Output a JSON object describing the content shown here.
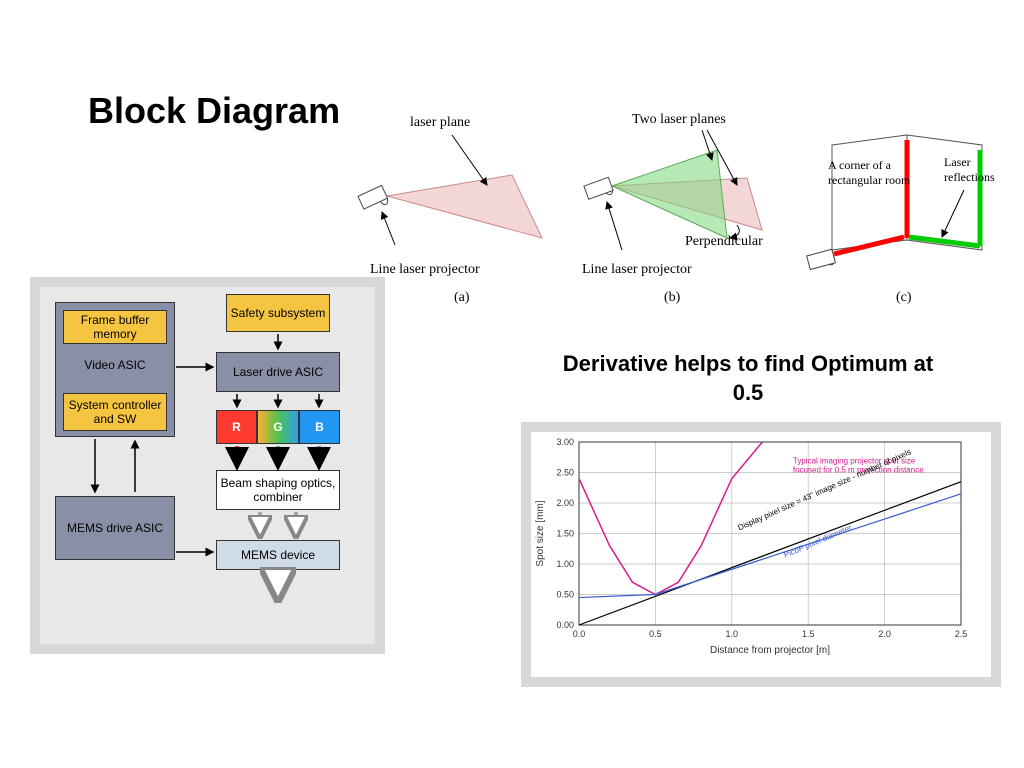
{
  "main_title": "Block Diagram",
  "subtitle": "Derivative helps to find Optimum at 0.5",
  "blockdiagram": {
    "panel_bg": "#e8e8e8",
    "panel_border": "#d8d8d8",
    "blocks": {
      "frame_buffer": {
        "label": "Frame buffer memory",
        "bg": "#f5c542",
        "border": "#b08810"
      },
      "video_asic": {
        "label": "Video ASIC",
        "bg": "#8a8fa8",
        "border": "#555"
      },
      "sys_ctrl": {
        "label": "System controller and SW",
        "bg": "#f5c542",
        "border": "#b08810"
      },
      "safety": {
        "label": "Safety subsystem",
        "bg": "#f5c542",
        "border": "#b08810"
      },
      "laser_drive": {
        "label": "Laser drive ASIC",
        "bg": "#8a8fa8",
        "border": "#555"
      },
      "rgb_r": {
        "label": "R",
        "bg": "#ff3b30"
      },
      "rgb_g": {
        "label": "G",
        "bg": "#4fc24f"
      },
      "rgb_b": {
        "label": "B",
        "bg": "#2196f3"
      },
      "beam": {
        "label": "Beam shaping optics, combiner",
        "bg": "#ffffff",
        "border": "#aaa"
      },
      "mems_drive": {
        "label": "MEMS drive ASIC",
        "bg": "#8a8fa8",
        "border": "#555"
      },
      "mems_dev": {
        "label": "MEMS device",
        "bg": "#d0dbe8",
        "border": "#7788aa"
      }
    }
  },
  "laser_diagrams": {
    "a": {
      "caption": "(a)",
      "labels": [
        "laser plane",
        "Line laser projector"
      ]
    },
    "b": {
      "caption": "(b)",
      "labels": [
        "Two laser planes",
        "Line laser projector",
        "Perpendicular"
      ]
    },
    "c": {
      "caption": "(c)",
      "labels": [
        "A corner of a rectangular room",
        "Laser reflections"
      ]
    },
    "plane_color": "#e8b0b0",
    "plane2_color": "#7fd87f",
    "red_line": "#ff0000",
    "green_line": "#00cc00"
  },
  "chart": {
    "type": "line",
    "xlabel": "Distance from projector [m]",
    "ylabel": "Spot size [mm]",
    "xlim": [
      0,
      2.5
    ],
    "ylim": [
      0,
      3.0
    ],
    "xticks": [
      0.0,
      0.5,
      1.0,
      1.5,
      2.0,
      2.5
    ],
    "yticks": [
      0.0,
      0.5,
      1.0,
      1.5,
      2.0,
      2.5,
      3.0
    ],
    "grid_color": "#bbb",
    "bg": "#ffffff",
    "series": [
      {
        "name": "Typical imaging projector spot size focused for 0.5 m projection distance",
        "color": "#d81b8f",
        "width": 1.5,
        "x": [
          0.0,
          0.2,
          0.35,
          0.5,
          0.65,
          0.8,
          1.0,
          1.2
        ],
        "y": [
          2.4,
          1.3,
          0.7,
          0.5,
          0.7,
          1.3,
          2.4,
          3.0
        ]
      },
      {
        "name": "Display pixel size = 43\" image size - number of pixels",
        "color": "#000000",
        "width": 1.2,
        "x": [
          0.0,
          2.5
        ],
        "y": [
          0.0,
          2.35
        ]
      },
      {
        "name": "PicoP pixel diameter",
        "color": "#3b5bd6",
        "width": 1.2,
        "x": [
          0.0,
          0.5,
          2.5
        ],
        "y": [
          0.45,
          0.5,
          2.15
        ]
      }
    ],
    "label_fontsize": 9
  }
}
